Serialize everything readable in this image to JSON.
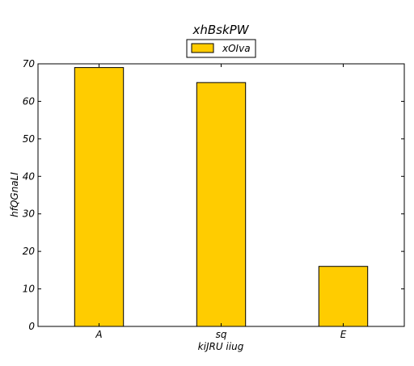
{
  "chart_data": {
    "type": "bar",
    "title": "xhBskPW",
    "xlabel": "kiJRU iiug",
    "ylabel": "hfQGnaLI",
    "categories": [
      "A",
      "sq",
      "E"
    ],
    "series": [
      {
        "name": "xOIva",
        "values": [
          69,
          65,
          16
        ],
        "color": "#ffcc00"
      }
    ],
    "ylim": [
      0,
      70
    ],
    "yticks": [
      0,
      10,
      20,
      30,
      40,
      50,
      60,
      70
    ],
    "legend_position": "top-center",
    "grid": false
  }
}
